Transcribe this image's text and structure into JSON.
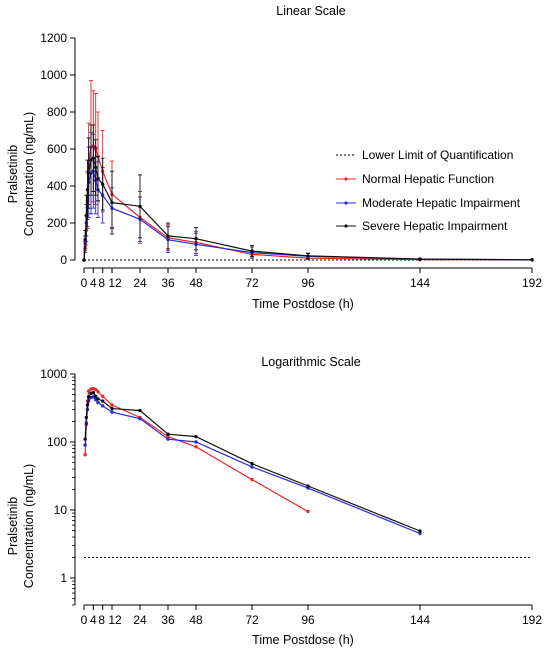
{
  "chart_data": [
    {
      "type": "line",
      "title": "Linear Scale",
      "xlabel": "Time Postdose (h)",
      "ylabel": [
        "Pralsetinib",
        "Concentration (ng/mL)"
      ],
      "xlim": [
        0,
        192
      ],
      "ylim": [
        0,
        1200
      ],
      "xticks": [
        0,
        4,
        8,
        12,
        24,
        36,
        48,
        72,
        96,
        144,
        192
      ],
      "xtick_labels": [
        "0",
        "4",
        "8",
        "12",
        "24",
        "36",
        "48",
        "72",
        "96",
        "144",
        "192"
      ],
      "yticks": [
        0,
        200,
        400,
        600,
        800,
        1000,
        1200
      ],
      "ytick_labels": [
        "0",
        "200",
        "400",
        "600",
        "800",
        "1000",
        "1200"
      ],
      "legend_position": "right",
      "lloq": {
        "name": "Lower Limit of Quantification",
        "value": 2
      },
      "series": [
        {
          "name": "Normal Hepatic Function",
          "color": "#e8262b",
          "x": [
            0,
            0.5,
            1,
            1.5,
            2,
            3,
            4,
            5,
            6,
            8,
            12,
            24,
            36,
            48,
            72,
            96,
            144,
            192
          ],
          "y": [
            0,
            70,
            160,
            320,
            520,
            610,
            615,
            600,
            560,
            480,
            355,
            230,
            120,
            95,
            30,
            10,
            2,
            1
          ],
          "err": [
            0,
            30,
            80,
            150,
            220,
            360,
            300,
            300,
            240,
            220,
            180,
            140,
            70,
            60,
            20,
            8,
            2,
            0
          ]
        },
        {
          "name": "Moderate Hepatic Impairment",
          "color": "#2a2ad8",
          "x": [
            0,
            0.5,
            1,
            1.5,
            2,
            3,
            4,
            5,
            6,
            8,
            12,
            24,
            36,
            48,
            72,
            96,
            144,
            192
          ],
          "y": [
            0,
            90,
            200,
            330,
            420,
            470,
            480,
            430,
            380,
            350,
            280,
            220,
            110,
            85,
            40,
            20,
            5,
            1
          ],
          "err": [
            0,
            40,
            100,
            150,
            190,
            220,
            200,
            180,
            150,
            150,
            110,
            120,
            70,
            60,
            30,
            15,
            3,
            0
          ]
        },
        {
          "name": "Severe Hepatic Impairment",
          "color": "#111111",
          "x": [
            0,
            0.5,
            1,
            1.5,
            2,
            3,
            4,
            5,
            6,
            8,
            12,
            24,
            36,
            48,
            72,
            96,
            144,
            192
          ],
          "y": [
            0,
            110,
            240,
            380,
            470,
            540,
            550,
            500,
            440,
            410,
            310,
            290,
            130,
            115,
            48,
            22,
            5,
            1
          ],
          "err": [
            0,
            50,
            110,
            160,
            190,
            190,
            180,
            150,
            120,
            140,
            170,
            170,
            70,
            60,
            30,
            15,
            3,
            0
          ]
        }
      ]
    },
    {
      "type": "line",
      "title": "Logarithmic Scale",
      "xlabel": "Time Postdose (h)",
      "ylabel": [
        "Pralsetinib",
        "Concentration (ng/mL)"
      ],
      "xlim": [
        0,
        192
      ],
      "ylim": [
        0.4,
        1000
      ],
      "yscale": "log",
      "xticks": [
        0,
        4,
        8,
        12,
        24,
        36,
        48,
        72,
        96,
        144,
        192
      ],
      "xtick_labels": [
        "0",
        "4",
        "8",
        "12",
        "24",
        "36",
        "48",
        "72",
        "96",
        "144",
        "192"
      ],
      "yticks": [
        1,
        10,
        100,
        1000
      ],
      "ytick_labels": [
        "1",
        "10",
        "100",
        "1000"
      ],
      "lloq": {
        "value": 2
      },
      "series": [
        {
          "name": "Normal Hepatic Function",
          "color": "#e8262b",
          "x": [
            0.5,
            1,
            1.5,
            2,
            3,
            4,
            5,
            6,
            8,
            12,
            24,
            36,
            48,
            72,
            96
          ],
          "y": [
            65,
            180,
            400,
            560,
            600,
            610,
            590,
            550,
            470,
            350,
            230,
            120,
            85,
            28,
            9.5
          ]
        },
        {
          "name": "Moderate Hepatic Impairment",
          "color": "#2a2ad8",
          "x": [
            0.5,
            1,
            1.5,
            2,
            3,
            4,
            5,
            6,
            8,
            12,
            24,
            36,
            48,
            72,
            96,
            144
          ],
          "y": [
            90,
            190,
            300,
            400,
            450,
            460,
            420,
            380,
            340,
            275,
            220,
            110,
            100,
            43,
            21,
            4.5
          ]
        },
        {
          "name": "Severe Hepatic Impairment",
          "color": "#111111",
          "x": [
            0.5,
            1,
            1.5,
            2,
            3,
            4,
            5,
            6,
            8,
            12,
            24,
            36,
            48,
            72,
            96,
            144
          ],
          "y": [
            110,
            230,
            350,
            460,
            520,
            530,
            470,
            430,
            400,
            310,
            290,
            130,
            120,
            48,
            22.5,
            4.9
          ]
        }
      ]
    }
  ]
}
